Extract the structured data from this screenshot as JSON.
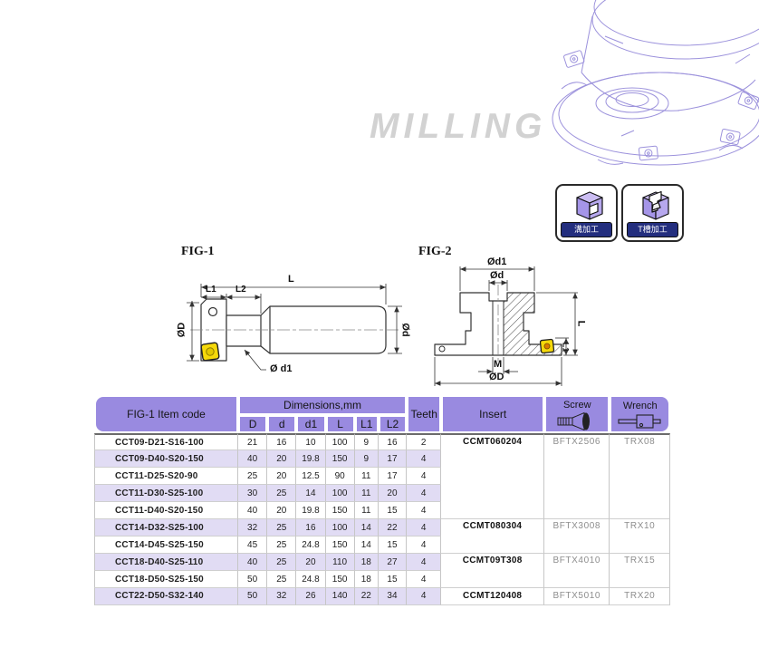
{
  "watermark": "MILLING",
  "badges": {
    "groove_label": "溝加工",
    "tslot_label": "T槽加工"
  },
  "fig1": {
    "title": "FIG-1",
    "dim_L": "L",
    "dim_L1": "L1",
    "dim_L2": "L2",
    "dim_OD": "ØD",
    "dim_Od": "Ød",
    "dim_Od1": "Ø d1"
  },
  "fig2": {
    "title": "FIG-2",
    "dim_Od1": "Ød1",
    "dim_Od": "Ød",
    "dim_L": "L",
    "dim_L1": "L1",
    "dim_M": "M",
    "dim_OD": "ØD"
  },
  "table": {
    "header": {
      "item_code": "FIG-1 Item code",
      "dimensions": "Dimensions,mm",
      "dim_cols": [
        "D",
        "d",
        "d1",
        "L",
        "L1",
        "L2"
      ],
      "teeth": "Teeth",
      "insert": "Insert",
      "screw": "Screw",
      "wrench": "Wrench"
    },
    "rows": [
      {
        "code": "CCT09-D21-S16-100",
        "D": "21",
        "d": "16",
        "d1": "10",
        "L": "100",
        "L1": "9",
        "L2": "16",
        "teeth": "2"
      },
      {
        "code": "CCT09-D40-S20-150",
        "D": "40",
        "d": "20",
        "d1": "19.8",
        "L": "150",
        "L1": "9",
        "L2": "17",
        "teeth": "4"
      },
      {
        "code": "CCT11-D25-S20-90",
        "D": "25",
        "d": "20",
        "d1": "12.5",
        "L": "90",
        "L1": "11",
        "L2": "17",
        "teeth": "4"
      },
      {
        "code": "CCT11-D30-S25-100",
        "D": "30",
        "d": "25",
        "d1": "14",
        "L": "100",
        "L1": "11",
        "L2": "20",
        "teeth": "4"
      },
      {
        "code": "CCT11-D40-S20-150",
        "D": "40",
        "d": "20",
        "d1": "19.8",
        "L": "150",
        "L1": "11",
        "L2": "15",
        "teeth": "4"
      },
      {
        "code": "CCT14-D32-S25-100",
        "D": "32",
        "d": "25",
        "d1": "16",
        "L": "100",
        "L1": "14",
        "L2": "22",
        "teeth": "4"
      },
      {
        "code": "CCT14-D45-S25-150",
        "D": "45",
        "d": "25",
        "d1": "24.8",
        "L": "150",
        "L1": "14",
        "L2": "15",
        "teeth": "4"
      },
      {
        "code": "CCT18-D40-S25-110",
        "D": "40",
        "d": "25",
        "d1": "20",
        "L": "110",
        "L1": "18",
        "L2": "27",
        "teeth": "4"
      },
      {
        "code": "CCT18-D50-S25-150",
        "D": "50",
        "d": "25",
        "d1": "24.8",
        "L": "150",
        "L1": "18",
        "L2": "15",
        "teeth": "4"
      },
      {
        "code": "CCT22-D50-S32-140",
        "D": "50",
        "d": "32",
        "d1": "26",
        "L": "140",
        "L1": "22",
        "L2": "34",
        "teeth": "4"
      }
    ],
    "groups": [
      {
        "span": 5,
        "insert": "CCMT060204",
        "screw": "BFTX2506",
        "wrench": "TRX08"
      },
      {
        "span": 2,
        "insert": "CCMT080304",
        "screw": "BFTX3008",
        "wrench": "TRX10"
      },
      {
        "span": 2,
        "insert": "CCMT09T308",
        "screw": "BFTX4010",
        "wrench": "TRX15"
      },
      {
        "span": 1,
        "insert": "CCMT120408",
        "screw": "BFTX5010",
        "wrench": "TRX20"
      }
    ]
  },
  "colors": {
    "header_purple": "#998ae0",
    "row_lavender": "#e1dcf4",
    "insert_yellow": "#f5d90a",
    "illustration_purple": "#9c92dc",
    "badge_navy": "#232e7e",
    "watermark_gray": "#d2d2d2"
  }
}
